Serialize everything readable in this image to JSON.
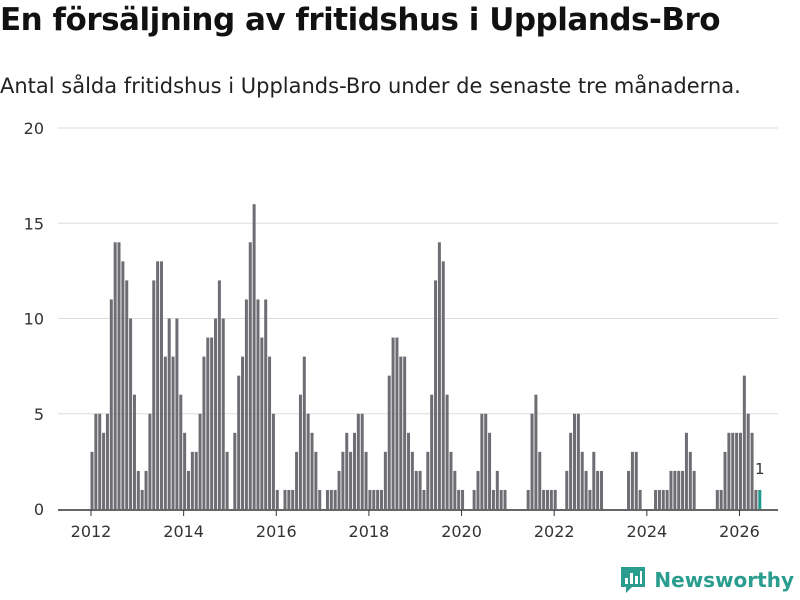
{
  "header": {
    "title": "En försäljning av fritidshus i Upplands-Bro",
    "subtitle": "Antal sålda fritidshus i Upplands-Bro under de senaste tre månaderna."
  },
  "brand": {
    "name": "Newsworthy",
    "logo_icon": "bar-chart-speech-icon"
  },
  "colors": {
    "bar": "#6e6d73",
    "highlight": "#1f9a8f",
    "grid": "#dddddd",
    "axis": "#333333",
    "brand": "#2a9d8f"
  },
  "chart_data": {
    "type": "bar",
    "title": "En försäljning av fritidshus i Upplands-Bro",
    "subtitle": "Antal sålda fritidshus i Upplands-Bro under de senaste tre månaderna.",
    "xlabel": "",
    "ylabel": "",
    "ylim": [
      0,
      20
    ],
    "yticks": [
      0,
      5,
      10,
      15,
      20
    ],
    "xticks": [
      2012,
      2014,
      2016,
      2018,
      2020,
      2022,
      2024,
      2026
    ],
    "start": "2012-01",
    "frequency": "monthly",
    "values": [
      3,
      5,
      5,
      4,
      5,
      11,
      14,
      14,
      13,
      12,
      10,
      6,
      2,
      1,
      2,
      5,
      12,
      13,
      13,
      8,
      10,
      8,
      10,
      6,
      4,
      2,
      3,
      3,
      5,
      8,
      9,
      9,
      10,
      12,
      10,
      3,
      0,
      4,
      7,
      8,
      11,
      14,
      16,
      11,
      9,
      11,
      8,
      5,
      1,
      0,
      1,
      1,
      1,
      3,
      6,
      8,
      5,
      4,
      3,
      1,
      0,
      1,
      1,
      1,
      2,
      3,
      4,
      3,
      4,
      5,
      5,
      3,
      1,
      1,
      1,
      1,
      3,
      7,
      9,
      9,
      8,
      8,
      4,
      3,
      2,
      2,
      1,
      3,
      6,
      12,
      14,
      13,
      6,
      3,
      2,
      1,
      1,
      0,
      0,
      1,
      2,
      5,
      5,
      4,
      1,
      2,
      1,
      1,
      0,
      0,
      0,
      0,
      0,
      1,
      5,
      6,
      3,
      1,
      1,
      1,
      1,
      0,
      0,
      2,
      4,
      5,
      5,
      3,
      2,
      1,
      3,
      2,
      2,
      0,
      0,
      0,
      0,
      0,
      0,
      2,
      3,
      3,
      1,
      0,
      0,
      0,
      1,
      1,
      1,
      1,
      2,
      2,
      2,
      2,
      4,
      3,
      2,
      0,
      0,
      0,
      0,
      0,
      1,
      1,
      3,
      4,
      4,
      4,
      4,
      7,
      5,
      4,
      1,
      1
    ],
    "highlight_last": true,
    "annotation": {
      "label": "1",
      "value": 1
    }
  }
}
